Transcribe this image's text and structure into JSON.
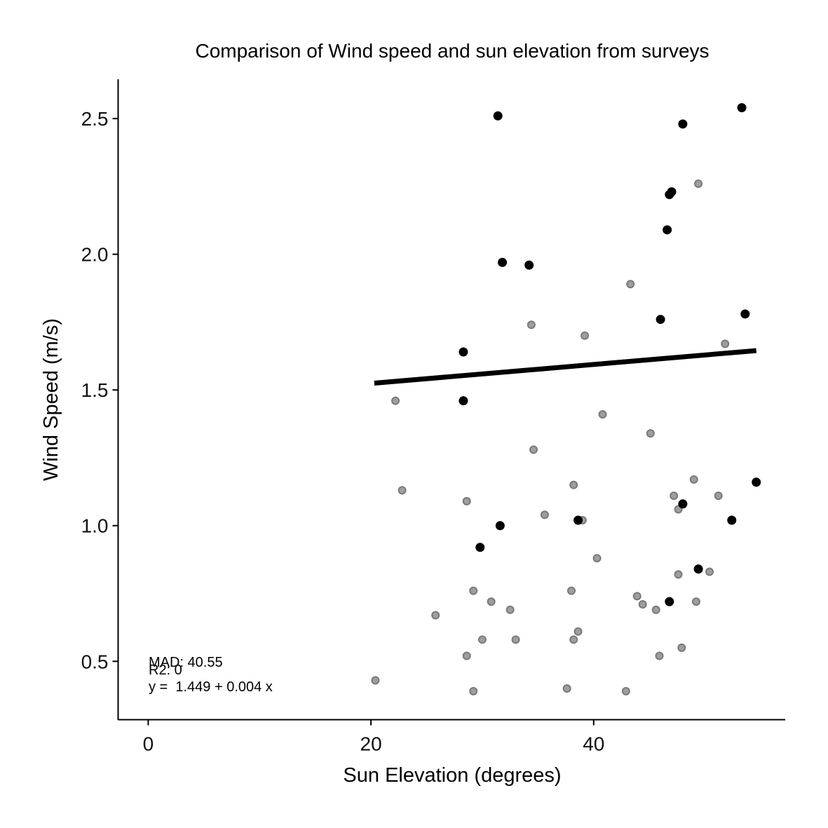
{
  "chart_data": {
    "type": "scatter",
    "title": "Comparison of Wind speed and sun elevation from surveys",
    "xlabel": "Sun Elevation (degrees)",
    "ylabel": "Wind Speed (m/s)",
    "xlim": [
      -2.7,
      57.2
    ],
    "ylim": [
      0.285,
      2.645
    ],
    "x_ticks": [
      0,
      20,
      40
    ],
    "x_tick_labels": [
      "0",
      "20",
      "40"
    ],
    "y_ticks": [
      0.5,
      1.0,
      1.5,
      2.0,
      2.5
    ],
    "y_tick_labels": [
      "0.5",
      "1.0",
      "1.5",
      "2.0",
      "2.5"
    ],
    "grid": false,
    "series": [
      {
        "color": "#9e9e9e",
        "stroke": "#7a7a7a",
        "points": [
          [
            22.2,
            1.46
          ],
          [
            22.8,
            1.13
          ],
          [
            20.4,
            0.43
          ],
          [
            25.8,
            0.67
          ],
          [
            28.6,
            1.09
          ],
          [
            28.6,
            0.52
          ],
          [
            29.2,
            0.76
          ],
          [
            29.2,
            0.39
          ],
          [
            30.0,
            0.58
          ],
          [
            30.8,
            0.72
          ],
          [
            32.5,
            0.69
          ],
          [
            33.0,
            0.58
          ],
          [
            34.4,
            1.74
          ],
          [
            34.6,
            1.28
          ],
          [
            35.6,
            1.04
          ],
          [
            37.6,
            0.4
          ],
          [
            38.0,
            0.76
          ],
          [
            38.2,
            1.15
          ],
          [
            38.2,
            0.58
          ],
          [
            38.6,
            0.61
          ],
          [
            39.0,
            1.02
          ],
          [
            39.2,
            1.7
          ],
          [
            40.3,
            0.88
          ],
          [
            40.8,
            1.41
          ],
          [
            42.9,
            0.39
          ],
          [
            43.3,
            1.89
          ],
          [
            43.9,
            0.74
          ],
          [
            44.4,
            0.71
          ],
          [
            45.1,
            1.34
          ],
          [
            45.6,
            0.69
          ],
          [
            45.9,
            0.52
          ],
          [
            47.2,
            1.11
          ],
          [
            47.6,
            1.06
          ],
          [
            47.6,
            0.82
          ],
          [
            47.9,
            0.55
          ],
          [
            49.0,
            1.17
          ],
          [
            49.2,
            0.72
          ],
          [
            49.4,
            2.26
          ],
          [
            50.4,
            0.83
          ],
          [
            51.2,
            1.11
          ],
          [
            51.8,
            1.67
          ]
        ]
      },
      {
        "color": "#000000",
        "stroke": "#000000",
        "points": [
          [
            31.4,
            2.51
          ],
          [
            31.8,
            1.97
          ],
          [
            34.2,
            1.96
          ],
          [
            28.3,
            1.64
          ],
          [
            28.3,
            1.46
          ],
          [
            31.6,
            1.0
          ],
          [
            29.8,
            0.92
          ],
          [
            38.6,
            1.02
          ],
          [
            46.0,
            1.76
          ],
          [
            46.6,
            2.09
          ],
          [
            46.8,
            2.22
          ],
          [
            47.0,
            2.23
          ],
          [
            48.0,
            2.48
          ],
          [
            46.8,
            0.72
          ],
          [
            48.0,
            1.08
          ],
          [
            49.4,
            0.84
          ],
          [
            52.4,
            1.02
          ],
          [
            53.3,
            2.54
          ],
          [
            53.6,
            1.78
          ],
          [
            54.6,
            1.16
          ]
        ]
      }
    ],
    "fit_line": {
      "x": [
        20.3,
        54.6
      ],
      "y": [
        1.525,
        1.645
      ],
      "color": "#000000"
    },
    "annotations": {
      "mad": "MAD: 40.55",
      "r2": "R2: 0",
      "equation": "y =  1.449 + 0.004 x"
    }
  }
}
